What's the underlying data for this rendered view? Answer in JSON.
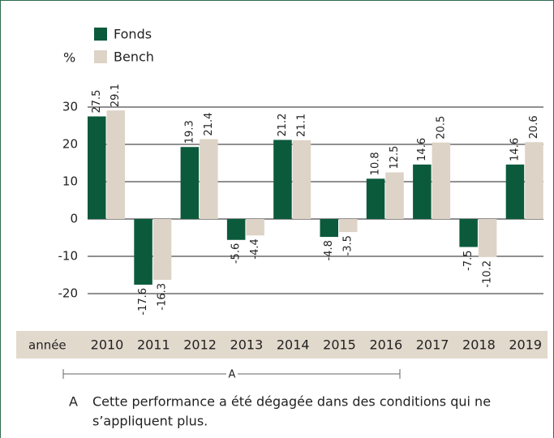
{
  "chart_data": {
    "type": "bar",
    "unit_label": "%",
    "x_label": "année",
    "categories": [
      "2010",
      "2011",
      "2012",
      "2013",
      "2014",
      "2015",
      "2016",
      "2017",
      "2018",
      "2019"
    ],
    "series": [
      {
        "name": "Fonds",
        "color": "#0b5a3c",
        "values": [
          27.5,
          -17.6,
          19.3,
          -5.6,
          21.2,
          -4.8,
          10.8,
          14.6,
          -7.5,
          14.6
        ]
      },
      {
        "name": "Bench",
        "color": "#ddd3c6",
        "values": [
          29.1,
          -16.3,
          21.4,
          -4.4,
          21.1,
          -3.5,
          12.5,
          20.5,
          -10.2,
          20.6
        ]
      }
    ],
    "ylim": [
      -20,
      30
    ],
    "yticks": [
      -20,
      -10,
      0,
      10,
      20,
      30
    ],
    "grid": true,
    "bracket_label": "A",
    "note": {
      "marker": "A",
      "lines": [
        "Cette performance a été dégagée dans des conditions qui ne",
        "s’appliquent plus."
      ]
    }
  }
}
